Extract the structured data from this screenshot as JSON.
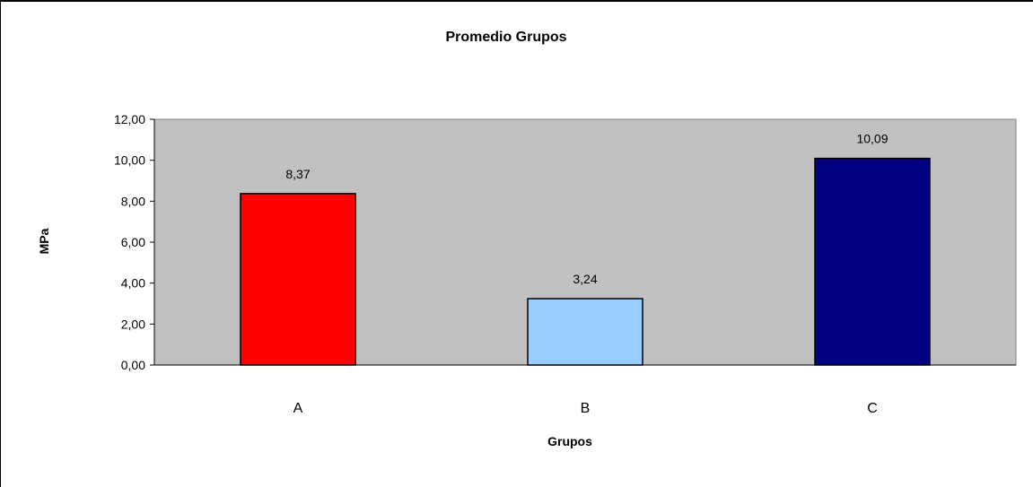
{
  "chart_data": {
    "type": "bar",
    "title": "Promedio Grupos",
    "xlabel": "Grupos",
    "ylabel": "MPa",
    "categories": [
      "A",
      "B",
      "C"
    ],
    "values": [
      8.37,
      3.24,
      10.09
    ],
    "data_labels": [
      "8,37",
      "3,24",
      "10,09"
    ],
    "bar_colors": [
      "#ff0000",
      "#99ccff",
      "#000080"
    ],
    "ylim": [
      0,
      12
    ],
    "yticks": [
      0,
      2,
      4,
      6,
      8,
      10,
      12
    ],
    "ytick_labels": [
      "0,00",
      "2,00",
      "4,00",
      "6,00",
      "8,00",
      "10,00",
      "12,00"
    ],
    "plot_background": "#c0c0c0",
    "grid": false,
    "legend": "none"
  }
}
